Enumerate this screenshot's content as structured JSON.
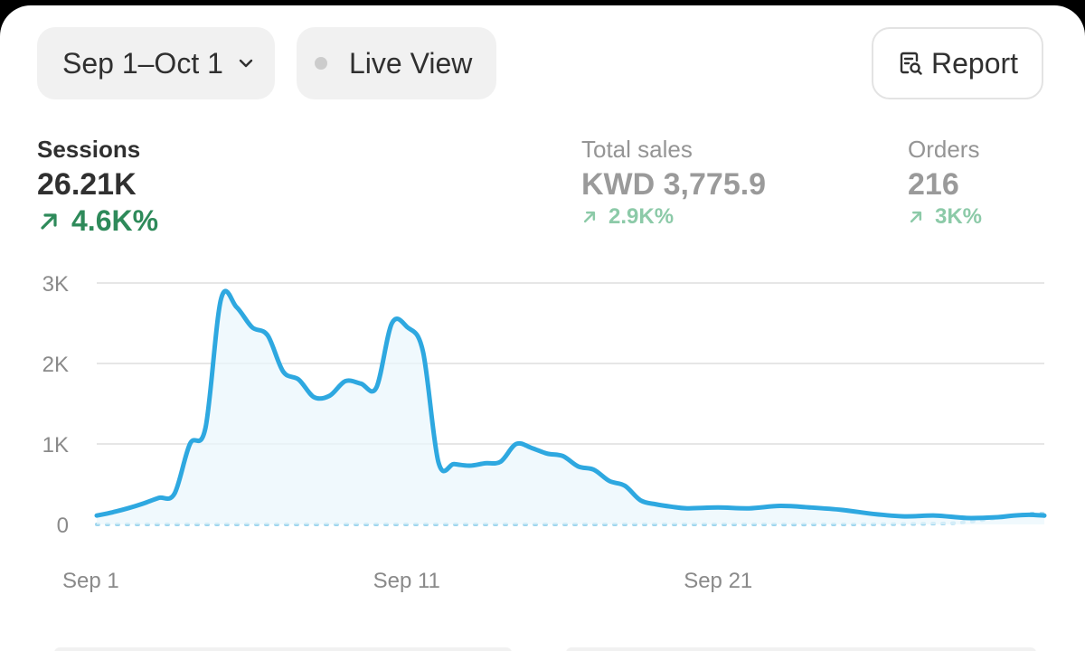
{
  "toolbar": {
    "date_range": "Sep 1–Oct 1",
    "live_view": "Live View",
    "report": "Report"
  },
  "metrics": {
    "sessions": {
      "label": "Sessions",
      "value": "26.21K",
      "change": "4.6K%"
    },
    "total_sales": {
      "label": "Total sales",
      "value": "KWD 3,775.9",
      "change": "2.9K%"
    },
    "orders": {
      "label": "Orders",
      "value": "216",
      "change": "3K%"
    }
  },
  "colors": {
    "line": "#2ea8e0",
    "positive": "#2e8a5a",
    "positive_faded": "#8ccaa8"
  },
  "icons": {
    "date_dropdown": "chevron-down-icon",
    "live_status": "status-dot-icon",
    "report": "report-search-icon",
    "trend": "arrow-up-right-icon"
  },
  "chart_data": {
    "type": "line",
    "ylim": [
      0,
      3000
    ],
    "y_ticks": [
      "0",
      "1K",
      "2K",
      "3K"
    ],
    "y_tick_values": [
      0,
      1000,
      2000,
      3000
    ],
    "x_ticks": [
      "Sep 1",
      "Sep 11",
      "Sep 21"
    ],
    "x_tick_values": [
      1,
      11,
      21
    ],
    "xlim": [
      1,
      31.5
    ],
    "grid": true,
    "series": [
      {
        "style": "solid",
        "x": [
          1,
          1.5,
          2,
          2.5,
          3,
          3.5,
          4,
          4.5,
          5,
          5.5,
          6,
          6.5,
          7,
          7.5,
          8,
          8.5,
          9,
          9.5,
          10,
          10.5,
          11,
          11.5,
          12,
          12.5,
          13,
          13.5,
          14,
          14.5,
          15,
          15.5,
          16,
          16.5,
          17,
          17.5,
          18,
          18.5,
          19,
          19.5,
          20,
          21,
          22,
          23,
          24,
          25,
          26,
          27,
          28,
          29,
          30,
          30.5,
          31,
          31.5
        ],
        "y": [
          110,
          150,
          200,
          260,
          330,
          380,
          1000,
          1200,
          2800,
          2700,
          2450,
          2350,
          1900,
          1800,
          1580,
          1600,
          1780,
          1750,
          1700,
          2500,
          2450,
          2150,
          770,
          750,
          730,
          760,
          780,
          1000,
          950,
          880,
          850,
          720,
          680,
          540,
          480,
          300,
          250,
          220,
          200,
          210,
          200,
          230,
          210,
          180,
          130,
          100,
          110,
          80,
          90,
          110,
          120,
          110
        ]
      },
      {
        "style": "dotted",
        "x": [
          1,
          5,
          10,
          15,
          20,
          25,
          28,
          29,
          30,
          31,
          31.5
        ],
        "y": [
          0,
          0,
          0,
          0,
          0,
          0,
          10,
          30,
          80,
          130,
          130
        ]
      }
    ]
  }
}
